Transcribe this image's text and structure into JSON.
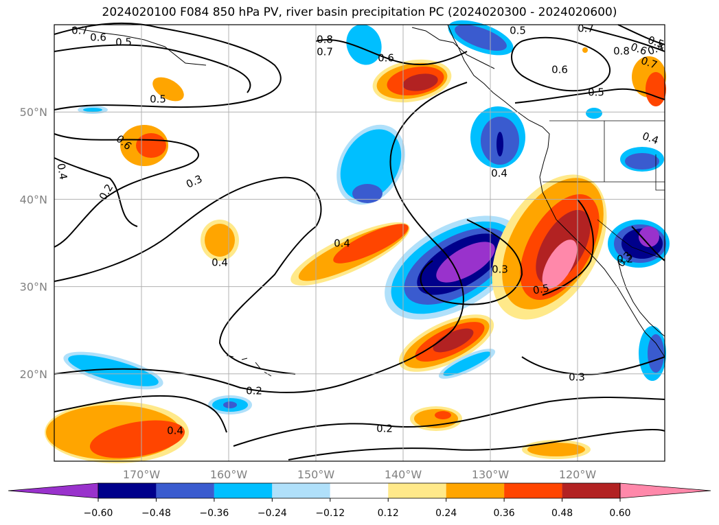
{
  "title": "2024020100 F084 850 hPa PV, river basin precipitation PC (2024020300 - 2024020600)",
  "map": {
    "lat_labels": [
      "50°N",
      "40°N",
      "30°N",
      "20°N"
    ],
    "lon_labels": [
      "170°W",
      "160°W",
      "150°W",
      "140°W",
      "130°W",
      "120°W"
    ],
    "extent": {
      "lon_min": -180,
      "lon_max": -110,
      "lat_min": 10,
      "lat_max": 60
    },
    "gridlines": true
  },
  "contour_labels": [
    "0.7",
    "0.6",
    "0.5",
    "0.8",
    "0.7",
    "0.6",
    "0.5",
    "0.7",
    "0.5",
    "0.4",
    "0.6",
    "0.8",
    "0.7",
    "0.6",
    "0.5",
    "0.4",
    "0.5",
    "0.6",
    "0.4",
    "0.2",
    "0.3",
    "0.4",
    "0.4",
    "0.4",
    "0.3",
    "0.5",
    "0.3",
    "0.3",
    "0.2",
    "0.4",
    "0.2",
    "0.2"
  ],
  "colorbar": {
    "ticks": [
      "−0.60",
      "−0.48",
      "−0.36",
      "−0.24",
      "−0.12",
      "0.12",
      "0.24",
      "0.36",
      "0.48",
      "0.60"
    ],
    "colors": [
      "#9932cc",
      "#00008b",
      "#3a5bcf",
      "#00bfff",
      "#b0e0fa",
      "#ffffff",
      "#ffe98a",
      "#ffa500",
      "#ff4500",
      "#b22222",
      "#ff88aa"
    ],
    "extend": "both"
  }
}
